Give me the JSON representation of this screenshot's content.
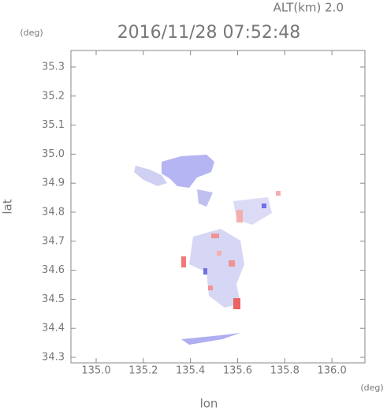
{
  "chart_data": {
    "type": "scatter",
    "title": "2016/11/28 07:52:48",
    "altitude_label": "ALT(km) 2.0",
    "xlabel": "lon",
    "ylabel": "lat",
    "x_unit": "(deg)",
    "y_unit": "(deg)",
    "xlim": [
      134.893,
      136.14
    ],
    "ylim": [
      34.281,
      35.357
    ],
    "xticks": [
      {
        "value": 135,
        "label": "135.0"
      },
      135.2,
      135.4,
      135.6,
      135.8,
      {
        "value": 136,
        "label": "136.0"
      }
    ],
    "yticks": [
      34.3,
      34.4,
      34.5,
      34.6,
      34.7,
      34.8,
      34.9,
      {
        "value": 35,
        "label": "35.0"
      },
      35.1,
      35.2,
      35.3
    ],
    "grid": false
  }
}
